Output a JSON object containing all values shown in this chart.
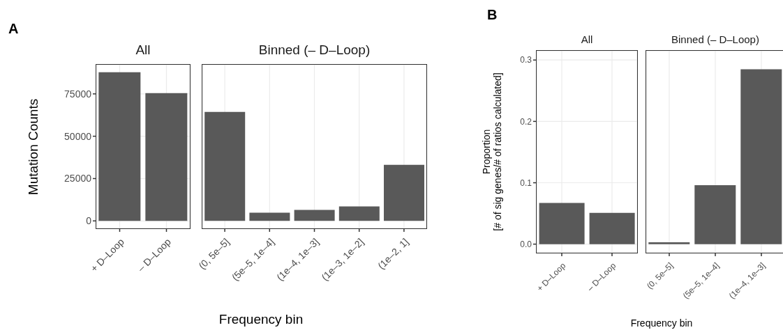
{
  "chart_data": [
    {
      "type": "bar",
      "title": "All",
      "ylabel": "Mutation Counts",
      "xlabel": "Frequency bin",
      "annotations": [
        "A"
      ],
      "categories": [
        "+ D–Loop",
        "– D–Loop"
      ],
      "values": [
        87800,
        75500
      ],
      "color": "#595959",
      "ylim": [
        -4400,
        92200
      ],
      "yticks": [
        0,
        25000,
        50000,
        75000
      ],
      "grid": true
    },
    {
      "type": "bar",
      "title": "Binned (– D–Loop)",
      "categories": [
        "(0, 5e–5]",
        "(5e–5, 1e–4]",
        "(1e–4, 1e–3]",
        "(1e–3, 1e–2]",
        "(1e–2, 1]"
      ],
      "values": [
        64400,
        4800,
        6500,
        8500,
        33100
      ],
      "color": "#595959",
      "ylim": [
        -4400,
        92200
      ],
      "yticks": [
        0,
        25000,
        50000,
        75000
      ],
      "grid": true,
      "tick_labels": "x"
    },
    {
      "type": "bar",
      "title": "All",
      "ylabel": "Proportion\n[# of sig genes/# of ratios calculated]",
      "xlabel": "Frequency bin",
      "annotations": [
        "B"
      ],
      "categories": [
        "+ D–Loop",
        "– D–Loop"
      ],
      "values": [
        0.067,
        0.051
      ],
      "color": "#595959",
      "ylim": [
        -0.014,
        0.315
      ],
      "yticks": [
        {
          "value": 0,
          "label": "0.0"
        },
        {
          "value": 0.1,
          "label": "0.1"
        },
        {
          "value": 0.2,
          "label": "0.2"
        },
        {
          "value": 0.3,
          "label": "0.3"
        }
      ],
      "grid": true
    },
    {
      "type": "bar",
      "title": "Binned (– D–Loop)",
      "categories": [
        "(0, 5e–5]",
        "(5e–5, 1e–4]",
        "(1e–4, 1e–3]"
      ],
      "values": [
        0.003,
        0.096,
        0.285
      ],
      "color": "#595959",
      "ylim": [
        -0.014,
        0.315
      ],
      "yticks": [
        0,
        0.1,
        0.2,
        0.3
      ],
      "grid": true,
      "tick_labels": "x"
    }
  ]
}
